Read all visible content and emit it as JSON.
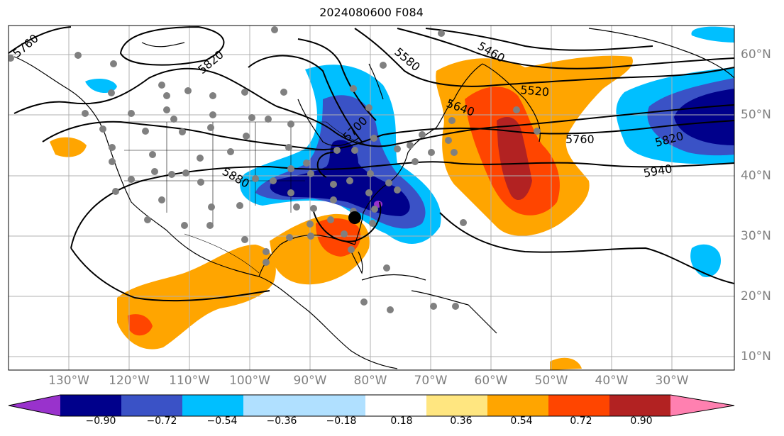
{
  "title": "2024080600 F084",
  "longitude_labels": [
    "130°W",
    "120°W",
    "110°W",
    "100°W",
    "90°W",
    "80°W",
    "70°W",
    "60°W",
    "50°W",
    "40°W",
    "30°W"
  ],
  "latitude_labels": [
    "60°N",
    "50°N",
    "40°N",
    "30°N",
    "20°N",
    "10°N"
  ],
  "contour_labels": [
    "5760",
    "5820",
    "5580",
    "5460",
    "5520",
    "5640",
    "5700",
    "5760",
    "5820",
    "5880",
    "5940"
  ],
  "colorbar": {
    "tick_labels": [
      "−0.90",
      "−0.72",
      "−0.54",
      "−0.36",
      "−0.18",
      "0.18",
      "0.36",
      "0.54",
      "0.72",
      "0.90"
    ],
    "colors": [
      "#9932cc",
      "#00008b",
      "#3a52c6",
      "#00bfff",
      "#b0e0ff",
      "#ffffff",
      "#ffe680",
      "#ffa500",
      "#ff4500",
      "#b22222",
      "#ff80b0"
    ]
  },
  "colors": {
    "land_outline": "#000000",
    "station_dots": "#808080",
    "storm_marker": "#000000",
    "grid": "#b0b0b0"
  }
}
